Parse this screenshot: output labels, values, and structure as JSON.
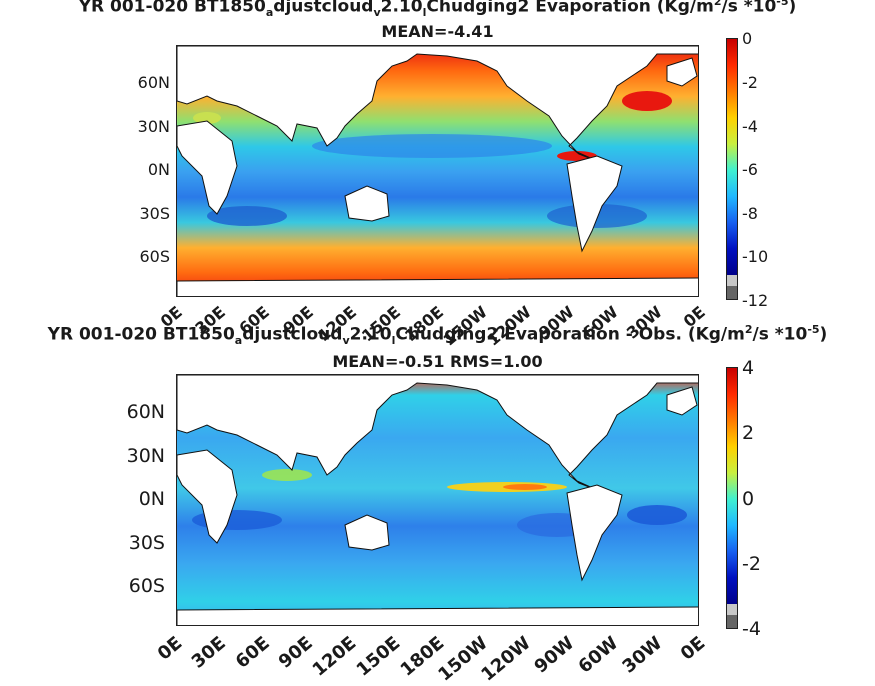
{
  "panel1": {
    "title": "YR 001-020 BT1850_adjustcloud_v2.10_lChudging2  Evaporation (Kg/m^2/s *10^-5)",
    "title_parts": {
      "a": "YR 001-020 BT1850",
      "b": "a",
      "c": "djustcloud",
      "d": "v",
      "e": "2.10",
      "f": "l",
      "g": "Chudging2  Evaporation (Kg/m",
      "h": "2",
      "i": "/s *10",
      "j": "-5",
      "k": ")"
    },
    "subtitle": "MEAN=-4.41",
    "lat_labels": [
      "60N",
      "30N",
      "0N",
      "30S",
      "60S"
    ],
    "lon_labels": [
      "0E",
      "30E",
      "60E",
      "90E",
      "120E",
      "150E",
      "180E",
      "150W",
      "120W",
      "90W",
      "60W",
      "30W",
      "0E"
    ],
    "colorbar": {
      "ticks": [
        "0",
        "-2",
        "-4",
        "-6",
        "-8",
        "-10",
        "-12"
      ],
      "min": -12,
      "max": 0
    }
  },
  "panel2": {
    "title": "YR 001-020 BT1850_adjustcloud_v2.10_lChudging2 Evaporation - Obs. (Kg/m^2/s *10^-5)",
    "title_parts": {
      "a": "YR 001-020 BT1850",
      "b": "a",
      "c": "djustcloud",
      "d": "v",
      "e": "2.10",
      "f": "l",
      "g": "Chudging2 Evaporation - Obs. (Kg/m",
      "h": "2",
      "i": "/s *10",
      "j": "-5",
      "k": ")"
    },
    "subtitle": "MEAN=-0.51   RMS=1.00",
    "lat_labels": [
      "60N",
      "30N",
      "0N",
      "30S",
      "60S"
    ],
    "lon_labels": [
      "0E",
      "30E",
      "60E",
      "90E",
      "120E",
      "150E",
      "180E",
      "150W",
      "120W",
      "90W",
      "60W",
      "30W",
      "0E"
    ],
    "colorbar": {
      "ticks": [
        "4",
        "2",
        "0",
        "-2",
        "-4"
      ],
      "min": -4,
      "max": 4
    }
  },
  "colors": {
    "red": "#e8180f",
    "orange": "#ff8c1a",
    "yellow": "#f0e020",
    "cyan": "#22d2ee",
    "blue": "#2e78ea",
    "navy": "#1010b0",
    "land": "#ffffff"
  }
}
